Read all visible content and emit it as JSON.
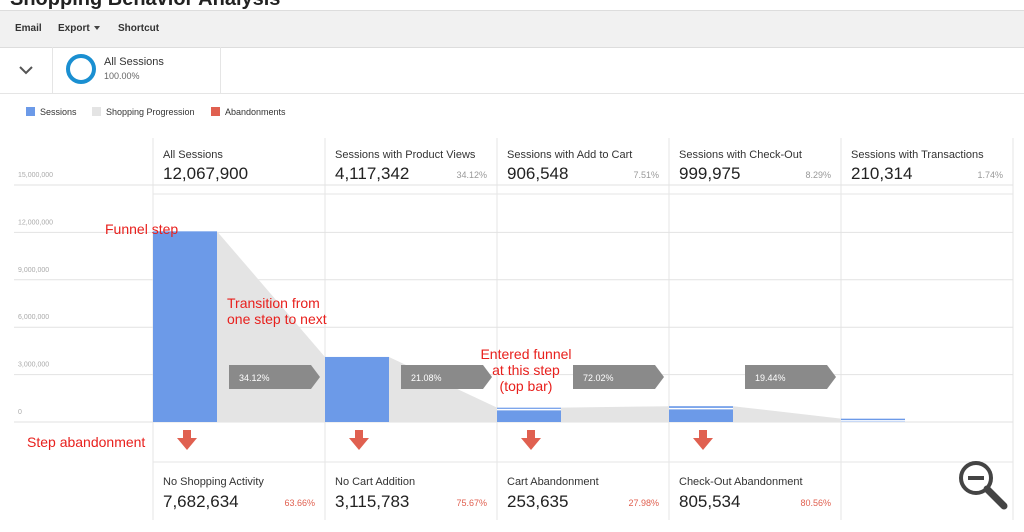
{
  "page_title": "Shopping Behavior Analysis",
  "toolbar": {
    "email": "Email",
    "export": "Export",
    "shortcut": "Shortcut"
  },
  "segment": {
    "name": "All Sessions",
    "percent": "100.00%",
    "color": "#1a8fd1"
  },
  "legend": [
    {
      "label": "Sessions",
      "color": "#6c9ae8"
    },
    {
      "label": "Shopping Progression",
      "color": "#e4e4e4"
    },
    {
      "label": "Abandonments",
      "color": "#e06050"
    }
  ],
  "chart_data": {
    "type": "bar",
    "y_ticks": [
      "15,000,000",
      "12,000,000",
      "9,000,000",
      "6,000,000",
      "3,000,000",
      "0"
    ],
    "ylim": [
      0,
      15000000
    ],
    "grid": true,
    "categories": [
      "All Sessions",
      "Sessions with Product Views",
      "Sessions with Add to Cart",
      "Sessions with Check-Out",
      "Sessions with Transactions"
    ],
    "values": [
      12067900,
      4117342,
      906548,
      999975,
      210314
    ],
    "value_labels": [
      "12,067,900",
      "4,117,342",
      "906,548",
      "999,975",
      "210,314"
    ],
    "step_percents": [
      "",
      "34.12%",
      "7.51%",
      "8.29%",
      "1.74%"
    ],
    "entered_tops": [
      0,
      0,
      120000,
      150000,
      140000
    ],
    "transitions": [
      "34.12%",
      "21.08%",
      "72.02%",
      "19.44%"
    ],
    "abandonments": [
      {
        "label": "No Shopping Activity",
        "value": "7,682,634",
        "percent": "63.66%"
      },
      {
        "label": "No Cart Addition",
        "value": "3,115,783",
        "percent": "75.67%"
      },
      {
        "label": "Cart Abandonment",
        "value": "253,635",
        "percent": "27.98%"
      },
      {
        "label": "Check-Out Abandonment",
        "value": "805,534",
        "percent": "80.56%"
      }
    ],
    "colors": {
      "bar": "#6c9ae8",
      "progression": "#e4e4e4",
      "arrow": "#8a8a8a",
      "abandon": "#e06050"
    }
  },
  "annotations": {
    "funnel_step": "Funnel step",
    "transition_line1": "Transition from",
    "transition_line2": "one step to next",
    "entered_line1": "Entered funnel",
    "entered_line2": "at this step",
    "entered_line3": "(top bar)",
    "step_abandonment": "Step abandonment",
    "color": "#e8201d"
  }
}
